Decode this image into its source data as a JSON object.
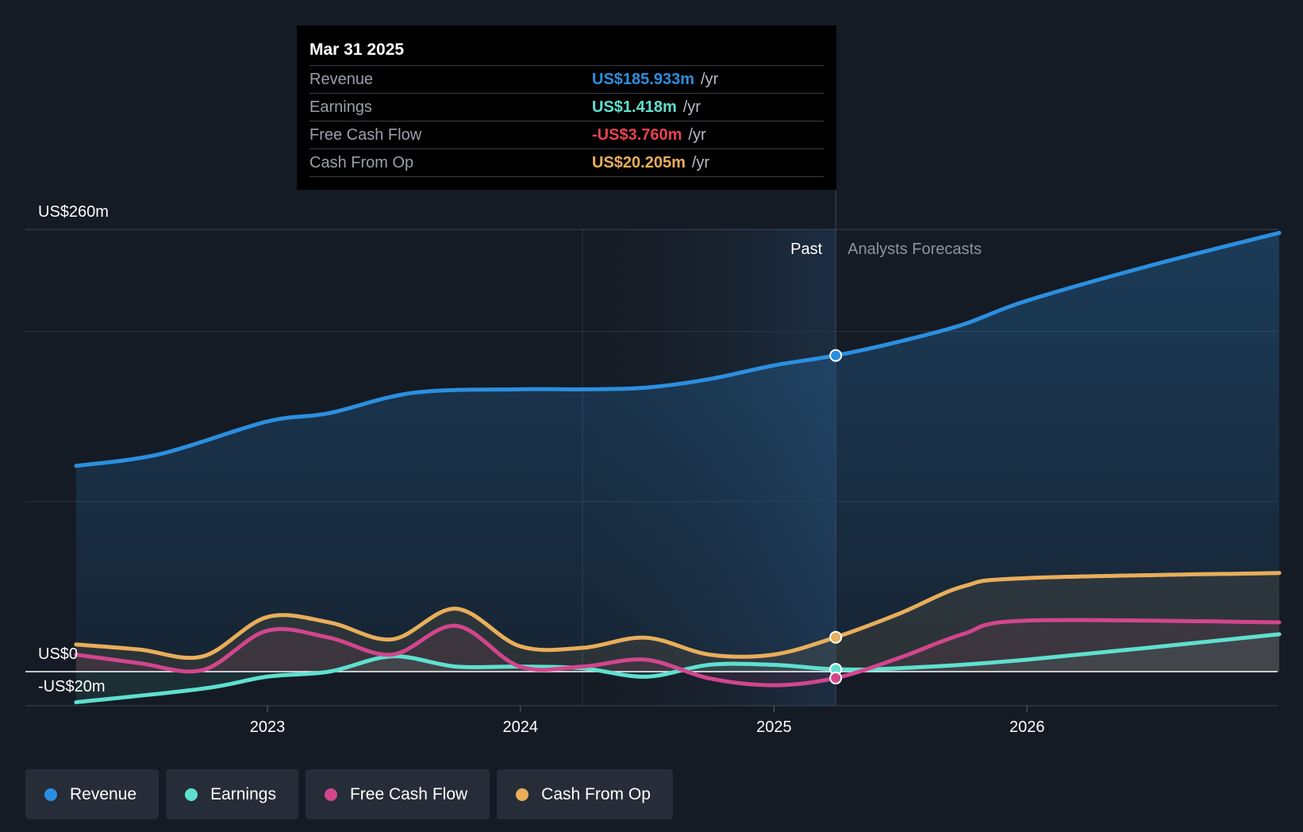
{
  "chart_data": {
    "type": "line",
    "x_range": [
      "2022-04",
      "2026-12"
    ],
    "y_axis": {
      "ylim": [
        -20,
        260
      ],
      "labels": [
        "US$260m",
        "US$0",
        "-US$20m"
      ]
    },
    "x_ticks": [
      "2023",
      "2024",
      "2025",
      "2026"
    ],
    "divider_date": "2025-03-31",
    "past_label": "Past",
    "forecast_label": "Analysts Forecasts",
    "series": [
      {
        "name": "Revenue",
        "color": "#2b8fe0",
        "points": [
          [
            "2022-03-31",
            121
          ],
          [
            "2022-07-31",
            128
          ],
          [
            "2022-12-31",
            147
          ],
          [
            "2023-03-31",
            152
          ],
          [
            "2023-07-31",
            164
          ],
          [
            "2023-12-31",
            166
          ],
          [
            "2024-03-31",
            166
          ],
          [
            "2024-06-30",
            167
          ],
          [
            "2024-09-30",
            172
          ],
          [
            "2024-12-31",
            180
          ],
          [
            "2025-03-31",
            185.9
          ],
          [
            "2025-06-30",
            194
          ],
          [
            "2025-09-30",
            204
          ],
          [
            "2025-12-31",
            218
          ],
          [
            "2026-06-30",
            239
          ],
          [
            "2026-12-31",
            258
          ]
        ]
      },
      {
        "name": "Earnings",
        "color": "#5fe0cf",
        "points": [
          [
            "2022-03-31",
            -18
          ],
          [
            "2022-09-30",
            -10
          ],
          [
            "2022-12-31",
            -3
          ],
          [
            "2023-03-31",
            0
          ],
          [
            "2023-06-30",
            9
          ],
          [
            "2023-09-30",
            3
          ],
          [
            "2023-12-31",
            3
          ],
          [
            "2024-03-31",
            2
          ],
          [
            "2024-06-30",
            -3
          ],
          [
            "2024-09-30",
            4
          ],
          [
            "2024-12-31",
            4
          ],
          [
            "2025-03-31",
            1.418
          ],
          [
            "2025-06-30",
            2
          ],
          [
            "2025-12-31",
            7
          ],
          [
            "2026-12-31",
            22
          ]
        ]
      },
      {
        "name": "Free Cash Flow",
        "color": "#d1468c",
        "points": [
          [
            "2022-03-31",
            10
          ],
          [
            "2022-06-30",
            5
          ],
          [
            "2022-09-30",
            1
          ],
          [
            "2022-12-31",
            24
          ],
          [
            "2023-03-31",
            20
          ],
          [
            "2023-06-30",
            10
          ],
          [
            "2023-09-30",
            27
          ],
          [
            "2023-12-31",
            3
          ],
          [
            "2024-03-31",
            3
          ],
          [
            "2024-06-30",
            7
          ],
          [
            "2024-09-30",
            -4
          ],
          [
            "2024-12-31",
            -8
          ],
          [
            "2025-03-31",
            -3.76
          ],
          [
            "2025-06-30",
            8
          ],
          [
            "2025-09-30",
            22
          ],
          [
            "2025-12-31",
            30
          ],
          [
            "2026-12-31",
            29
          ]
        ]
      },
      {
        "name": "Cash From Op",
        "color": "#e9ae5a",
        "points": [
          [
            "2022-03-31",
            16
          ],
          [
            "2022-06-30",
            13
          ],
          [
            "2022-09-30",
            9
          ],
          [
            "2022-12-31",
            32
          ],
          [
            "2023-03-31",
            29
          ],
          [
            "2023-06-30",
            19
          ],
          [
            "2023-09-30",
            37
          ],
          [
            "2023-12-31",
            15
          ],
          [
            "2024-03-31",
            14
          ],
          [
            "2024-06-30",
            20
          ],
          [
            "2024-09-30",
            10
          ],
          [
            "2024-12-31",
            10
          ],
          [
            "2025-03-31",
            20.205
          ],
          [
            "2025-06-30",
            34
          ],
          [
            "2025-09-30",
            50
          ],
          [
            "2025-12-31",
            55
          ],
          [
            "2026-12-31",
            58
          ]
        ]
      }
    ]
  },
  "tooltip": {
    "date": "Mar 31 2025",
    "rows": [
      {
        "label": "Revenue",
        "value": "US$185.933m",
        "unit": "/yr",
        "color": "#2b8fe0"
      },
      {
        "label": "Earnings",
        "value": "US$1.418m",
        "unit": "/yr",
        "color": "#5fe0cf"
      },
      {
        "label": "Free Cash Flow",
        "value": "-US$3.760m",
        "unit": "/yr",
        "color": "#e8424e"
      },
      {
        "label": "Cash From Op",
        "value": "US$20.205m",
        "unit": "/yr",
        "color": "#e9ae5a"
      }
    ]
  },
  "legend": [
    {
      "label": "Revenue",
      "color": "#2b8fe0"
    },
    {
      "label": "Earnings",
      "color": "#5fe0cf"
    },
    {
      "label": "Free Cash Flow",
      "color": "#d1468c"
    },
    {
      "label": "Cash From Op",
      "color": "#e9ae5a"
    }
  ]
}
